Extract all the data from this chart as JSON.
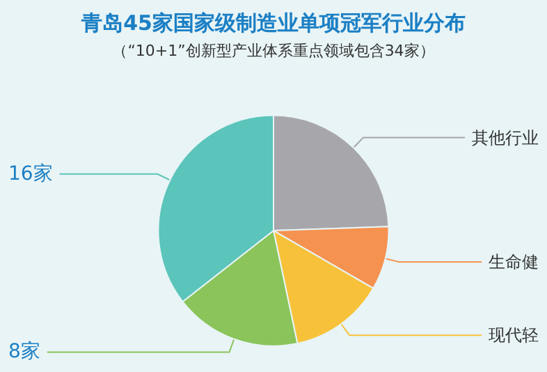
{
  "chart_data": {
    "type": "pie",
    "title": "青岛45家国家级制造业单项冠军行业分布",
    "subtitle": "（“10+1”创新型产业体系重点领域包含34家）",
    "categories": [
      "其他行业",
      "生命健",
      "现代轻",
      null,
      null
    ],
    "values": [
      11,
      4,
      6,
      8,
      16
    ],
    "value_labels": [
      null,
      null,
      null,
      "8家",
      "16家"
    ],
    "colors": [
      "#a7a6ab",
      "#f5924f",
      "#f7c23a",
      "#8ac45a",
      "#5bc4bb"
    ],
    "legend": false
  }
}
